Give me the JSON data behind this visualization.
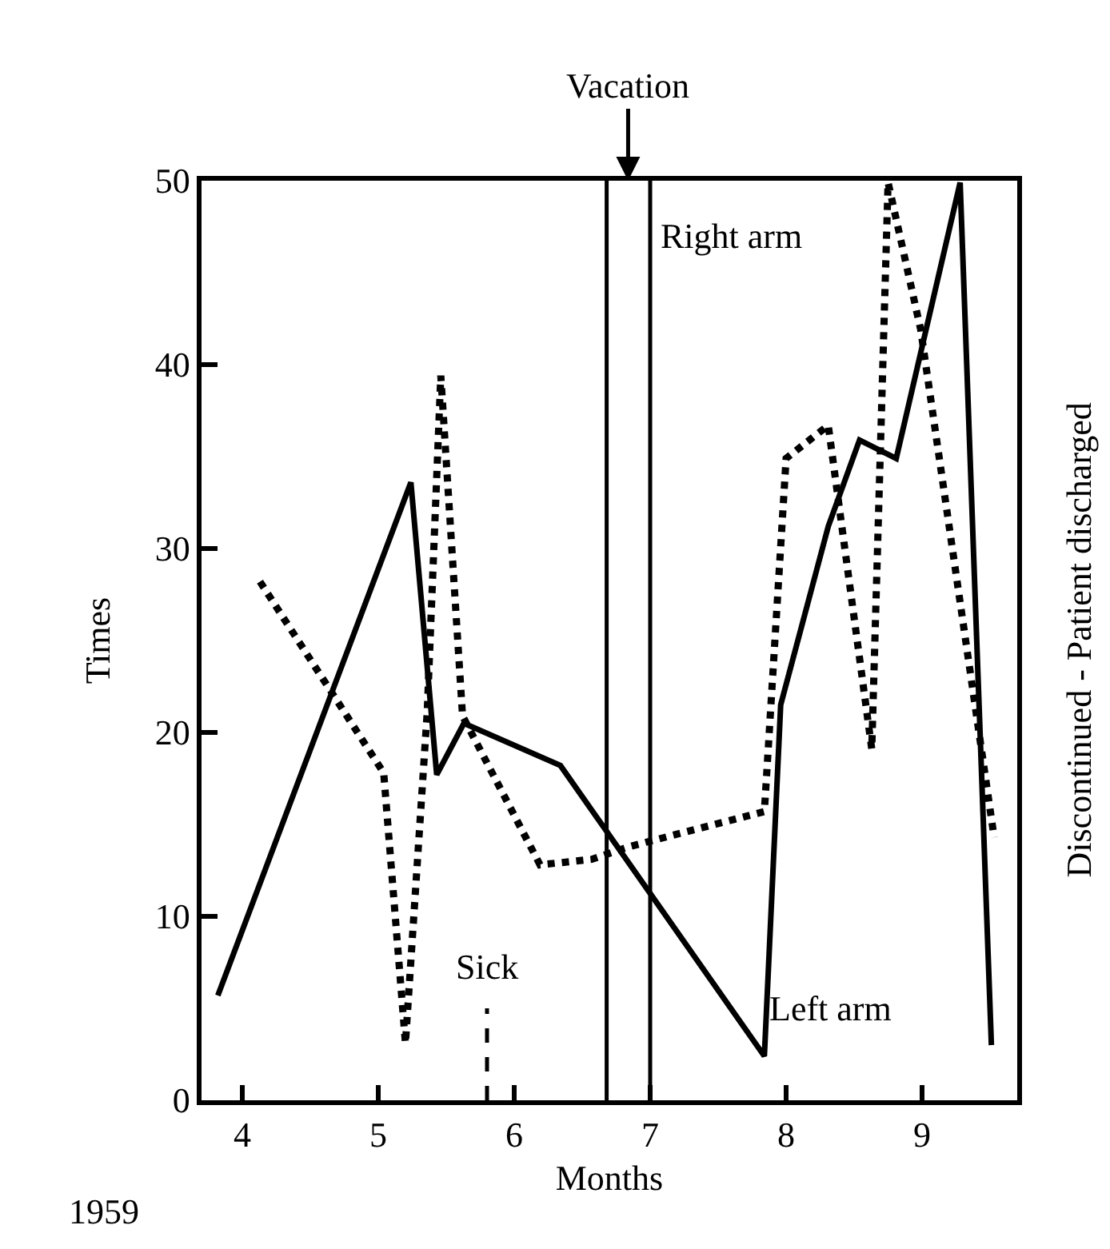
{
  "chart_data": {
    "type": "line",
    "xlabel": "Months",
    "ylabel": "Times",
    "xlim": [
      3.7,
      9.7
    ],
    "xticks": [
      4,
      5,
      6,
      7,
      8,
      9
    ],
    "ylim": [
      0,
      50
    ],
    "yticks": [
      0,
      10,
      20,
      30,
      40,
      50
    ],
    "series": [
      {
        "color": "#000000",
        "line_style": "solid",
        "x": [
          3.82,
          5.24,
          5.43,
          5.63,
          6.34,
          7.84,
          7.96,
          8.31,
          8.54,
          8.81,
          9.28,
          9.51
        ],
        "values": [
          5.7,
          33.6,
          17.7,
          20.5,
          18.2,
          2.4,
          21.5,
          31.2,
          35.9,
          34.9,
          49.9,
          3.0
        ]
      },
      {
        "color": "#000000",
        "line_style": "dotted",
        "x": [
          4.13,
          5.04,
          5.2,
          5.36,
          5.46,
          5.62,
          6.19,
          6.57,
          6.85,
          7.84,
          8.0,
          8.31,
          8.63,
          8.75,
          8.99,
          9.53
        ],
        "values": [
          28.2,
          17.8,
          3.1,
          21.1,
          39.4,
          20.9,
          12.8,
          13.1,
          13.8,
          15.7,
          34.9,
          36.7,
          19.1,
          49.9,
          41.9,
          14.3
        ]
      }
    ],
    "ref_lines": [
      {
        "axis": "x",
        "value": 6.68,
        "line_style": "solid"
      },
      {
        "axis": "x",
        "value": 7.0,
        "line_style": "solid"
      },
      {
        "axis": "x",
        "value": 5.8,
        "line_style": "dashed",
        "label": "Sick"
      }
    ],
    "annotations": [
      "Vacation",
      "Right arm",
      "Left arm",
      "1959",
      "Discontinued - Patient discharged"
    ],
    "grid": false,
    "marker": "none"
  }
}
